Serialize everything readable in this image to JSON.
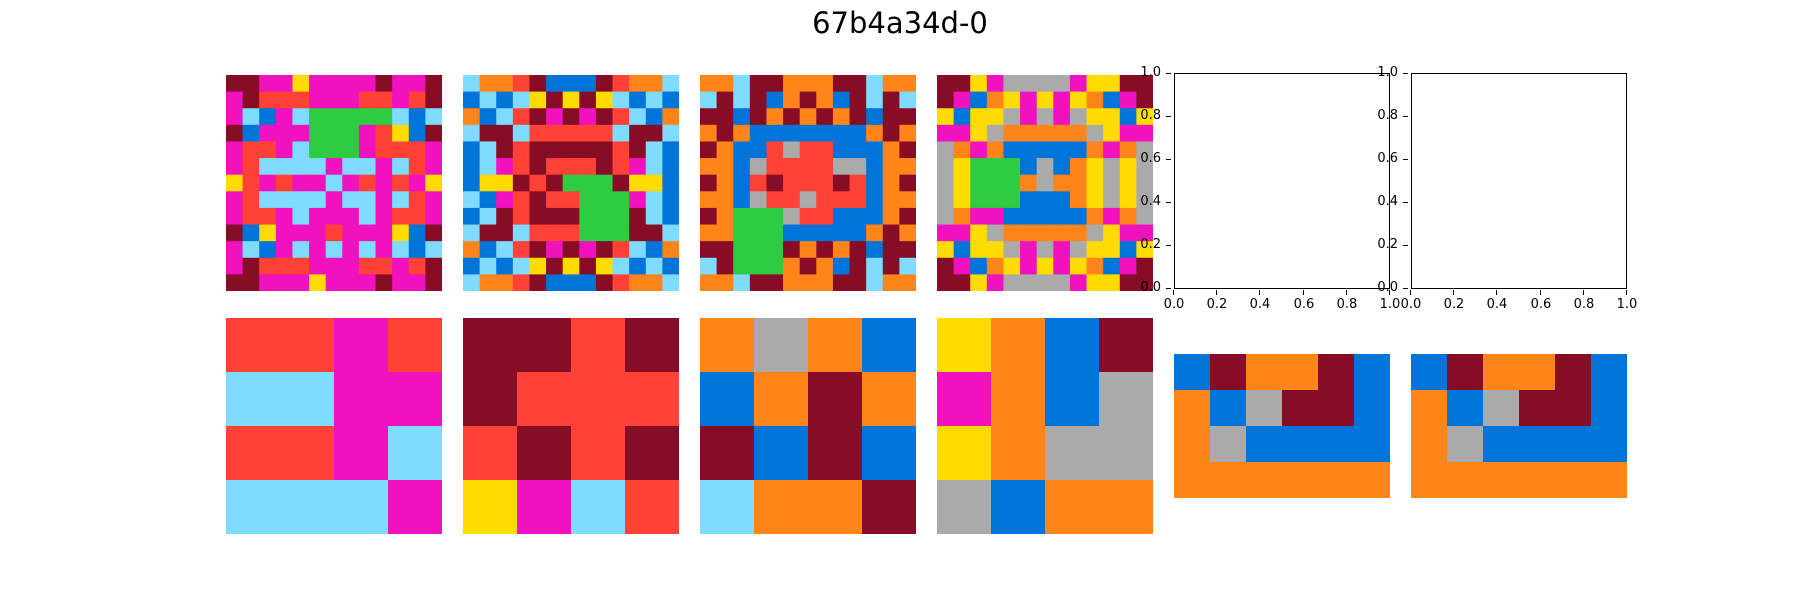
{
  "title": "67b4a34d-0",
  "palette": {
    "0": "#000000",
    "1": "#0074D9",
    "2": "#FF4136",
    "3": "#2ECC40",
    "4": "#FFDC00",
    "5": "#AAAAAA",
    "6": "#F012BE",
    "7": "#FF851B",
    "8": "#7FDBFF",
    "9": "#870C25"
  },
  "grids": [
    {
      "rows": [
        "9966466669669",
        "6922266622629",
        "6816833333818",
        "9166633362419",
        "6226833362226",
        "6288886886826",
        "4262668626264",
        "6288886886826",
        "6226866686226",
        "9146662666419",
        "6816868686818",
        "6922266622629",
        "9966646669669"
      ]
    },
    {
      "rows": [
        "8772911192778",
        "1818494948181",
        "7182969692817",
        "8998222228998",
        "1892999992981",
        "1862922292681",
        "1449293339441",
        "8162922333681",
        "1892999333981",
        "8998222333998",
        "7182969692817",
        "1818494948181",
        "8772911192778"
      ]
    },
    {
      "rows": [
        "7789977799877",
        "8989179719898",
        "9919797979199",
        "7971111111797",
        "9711252211179",
        "7715222255177",
        "9712922292179",
        "7715225222177",
        "9733352211179",
        "7733311111797",
        "9933397979199",
        "8933379719898",
        "7789977799877"
      ]
    },
    {
      "rows": [
        "9946555564499",
        "9617464647169",
        "4144565654414",
        "6645777775466",
        "5767111117675",
        "5433315174545",
        "5433375774545",
        "5433311174545",
        "5766111117675",
        "6645777775466",
        "4144565654414",
        "9617464647169",
        "9946555564499"
      ]
    }
  ],
  "outputs": [
    {
      "rows": [
        "2262",
        "8866",
        "2268",
        "8886"
      ]
    },
    {
      "rows": [
        "9929",
        "9222",
        "2929",
        "4682"
      ]
    },
    {
      "rows": [
        "7571",
        "1797",
        "9191",
        "8779"
      ]
    },
    {
      "rows": [
        "4719",
        "6715",
        "4755",
        "5177"
      ]
    },
    {
      "rows": [
        "197791",
        "715991",
        "751111",
        "777777"
      ]
    },
    {
      "rows": [
        "197791",
        "715991",
        "751111",
        "777777"
      ]
    }
  ],
  "empty_axes": [
    {
      "xticks": [
        "0.0",
        "0.2",
        "0.4",
        "0.6",
        "0.8",
        "1.0"
      ],
      "yticks": [
        "1.0",
        "0.8",
        "0.6",
        "0.4",
        "0.2",
        "0.0"
      ]
    },
    {
      "xticks": [
        "0.0",
        "0.2",
        "0.4",
        "0.6",
        "0.8",
        "1.0"
      ],
      "yticks": [
        "1.0",
        "0.8",
        "0.6",
        "0.4",
        "0.2",
        "0.0"
      ]
    }
  ]
}
